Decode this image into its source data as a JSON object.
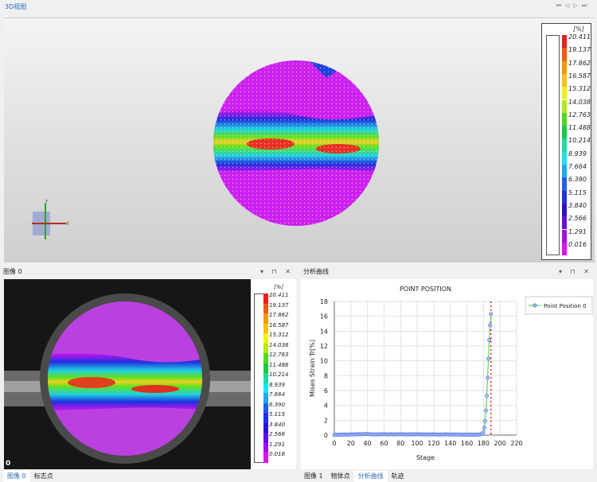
{
  "top": {
    "title": "3D视图",
    "nav": [
      "⏮",
      "◁",
      "▷",
      "⏭"
    ]
  },
  "colorbar": {
    "unit": "[%]",
    "labels": [
      "20.411",
      "19.137",
      "17.862",
      "16.587",
      "15.312",
      "14.038",
      "12.763",
      "11.488",
      "10.214",
      "8.939",
      "7.664",
      "6.390",
      "5.115",
      "3.840",
      "2.566",
      "1.291",
      "0.016"
    ],
    "colors": [
      "#e8201a",
      "#f05a10",
      "#f59a10",
      "#f5c020",
      "#f0f020",
      "#b0e820",
      "#50d820",
      "#20c840",
      "#20d8a0",
      "#20e0f0",
      "#20a8f0",
      "#2060e8",
      "#2030e0",
      "#3010c8",
      "#6010d8",
      "#a010e8",
      "#e010f0"
    ]
  },
  "axis_labels": {
    "y": "Y",
    "x": "X"
  },
  "image_panel": {
    "title": "图像 0",
    "controls": "▾ ⊓ ✕",
    "frame": "0",
    "tabs": [
      "图像 0",
      "标志点"
    ]
  },
  "chart_panel": {
    "title": "分析曲线",
    "controls": "▾ ⊓ ✕",
    "tabs": [
      "图像 1",
      "物体点",
      "分析曲线",
      "轨迹"
    ]
  },
  "chart_data": {
    "type": "line",
    "title": "POINT POSITION",
    "xlabel": "Stage",
    "ylabel": "Mises Strain Tr[%]",
    "xlim": [
      0,
      220
    ],
    "ylim": [
      0,
      18
    ],
    "xticks": [
      0,
      20,
      40,
      60,
      80,
      100,
      120,
      140,
      160,
      180,
      200,
      220
    ],
    "yticks": [
      0,
      2,
      4,
      6,
      8,
      10,
      12,
      14,
      16,
      18
    ],
    "grid": true,
    "legend": "top-right",
    "marker_line_x": 189,
    "series": [
      {
        "name": "Point Position 0",
        "color": "#4a6ee0",
        "line_color": "#40d040",
        "x": [
          0,
          2,
          4,
          6,
          8,
          10,
          12,
          14,
          16,
          18,
          20,
          22,
          24,
          26,
          28,
          30,
          32,
          34,
          36,
          38,
          40,
          42,
          44,
          46,
          48,
          50,
          52,
          54,
          56,
          58,
          60,
          62,
          64,
          66,
          68,
          70,
          72,
          74,
          76,
          78,
          80,
          82,
          84,
          86,
          88,
          90,
          92,
          94,
          96,
          98,
          100,
          102,
          104,
          106,
          108,
          110,
          112,
          114,
          116,
          118,
          120,
          122,
          124,
          126,
          128,
          130,
          132,
          134,
          136,
          138,
          140,
          142,
          144,
          146,
          148,
          150,
          152,
          154,
          156,
          158,
          160,
          162,
          164,
          166,
          168,
          170,
          172,
          174,
          176,
          178,
          180,
          181,
          182,
          183,
          184,
          185,
          186,
          187,
          188,
          189
        ],
        "y": [
          0.02,
          0.05,
          0.06,
          0.05,
          0.07,
          0.06,
          0.08,
          0.07,
          0.06,
          0.08,
          0.09,
          0.08,
          0.1,
          0.09,
          0.1,
          0.12,
          0.11,
          0.12,
          0.13,
          0.14,
          0.15,
          0.12,
          0.1,
          0.09,
          0.08,
          0.1,
          0.09,
          0.1,
          0.11,
          0.1,
          0.12,
          0.1,
          0.09,
          0.11,
          0.1,
          0.1,
          0.09,
          0.1,
          0.11,
          0.1,
          0.12,
          0.1,
          0.09,
          0.1,
          0.08,
          0.1,
          0.09,
          0.1,
          0.1,
          0.09,
          0.1,
          0.11,
          0.1,
          0.09,
          0.1,
          0.08,
          0.09,
          0.1,
          0.08,
          0.09,
          0.1,
          0.09,
          0.08,
          0.07,
          0.09,
          0.08,
          0.09,
          0.1,
          0.09,
          0.08,
          0.09,
          0.08,
          0.07,
          0.08,
          0.07,
          0.08,
          0.07,
          0.06,
          0.07,
          0.06,
          0.05,
          0.06,
          0.05,
          0.06,
          0.05,
          0.06,
          0.05,
          0.06,
          0.08,
          0.15,
          0.4,
          1.0,
          1.9,
          3.3,
          5.3,
          7.7,
          10.3,
          12.8,
          14.8,
          16.3
        ]
      }
    ]
  }
}
